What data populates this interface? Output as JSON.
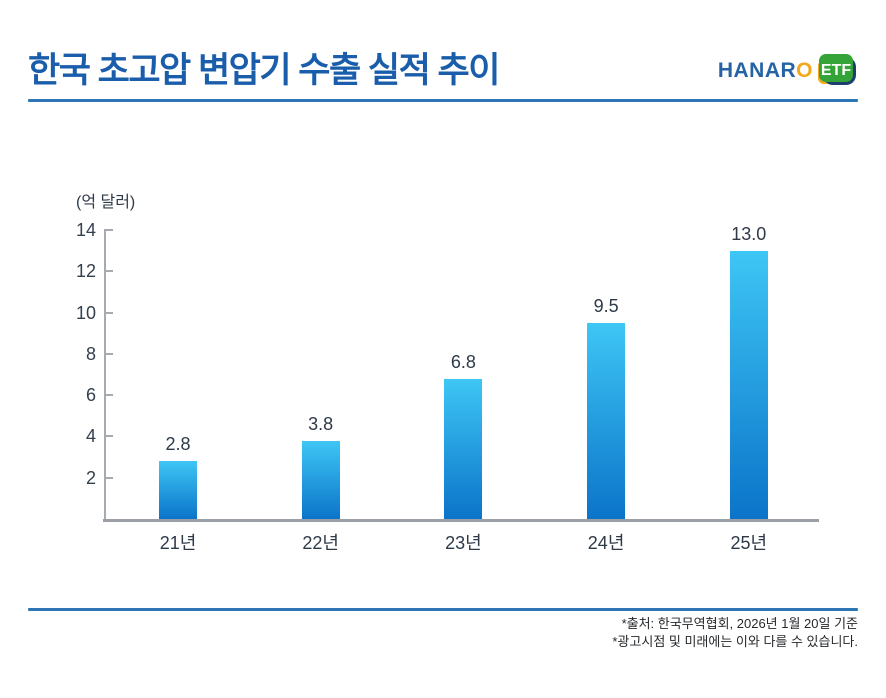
{
  "header": {
    "title": "한국 초고압 변압기 수출 실적 추이",
    "logo": {
      "brand_prefix": "HANAR",
      "brand_o": "O",
      "badge_label": "ETF"
    }
  },
  "chart": {
    "unit_label": "(억 달러)"
  },
  "chart_data": {
    "type": "bar",
    "title": "한국 초고압 변압기 수출 실적 추이",
    "categories": [
      "21년",
      "22년",
      "23년",
      "24년",
      "25년"
    ],
    "values": [
      2.8,
      3.8,
      6.8,
      9.5,
      13.0
    ],
    "value_labels": [
      "2.8",
      "3.8",
      "6.8",
      "9.5",
      "13.0"
    ],
    "xlabel": "",
    "ylabel": "(억 달러)",
    "ylim": [
      0,
      14
    ],
    "ytick_step": 2,
    "grid": false,
    "legend": false,
    "bar_gradient_top": "#3ec6f5",
    "bar_gradient_bottom": "#0b74c9"
  },
  "footer": {
    "source_note": "*출처: 한국무역협회, 2026년 1월 20일 기준",
    "disclaimer_note": "*광고시점 및 미래에는 이와 다를 수 있습니다."
  },
  "colors": {
    "title_blue": "#1a5dab",
    "rule_blue": "#2e75b6",
    "axis_gray": "#a6abb1",
    "baseline_gray": "#9aa0a6",
    "label_dark": "#2e3a48",
    "logo_blue": "#2663a5",
    "logo_orange": "#f3a71b",
    "badge_green": "#35a438",
    "badge_navy": "#1d3f6e",
    "badge_gold": "#f5a81c"
  }
}
